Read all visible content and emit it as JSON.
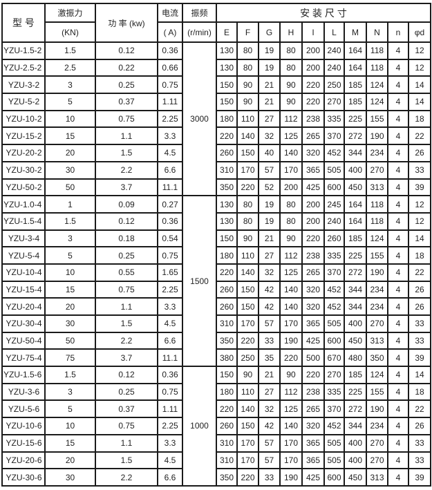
{
  "header": {
    "model": "型 号",
    "force": "激振力",
    "force_unit": "(KN)",
    "power": "功 率 (kw)",
    "current": "电流",
    "current_unit": "( A)",
    "freq": "振频",
    "freq_unit": "(r/min)",
    "install": "安  装  尺  寸",
    "dims": [
      "E",
      "F",
      "G",
      "H",
      "I",
      "L",
      "M",
      "N",
      "n",
      "φd"
    ]
  },
  "groups": [
    {
      "freq": "3000",
      "rows": [
        [
          "YZU-1.5-2",
          "1.5",
          "0.12",
          "0.36",
          [
            "130",
            "80",
            "19",
            "80",
            "200",
            "240",
            "164",
            "118",
            "4",
            "12"
          ]
        ],
        [
          "YZU-2.5-2",
          "2.5",
          "0.22",
          "0.66",
          [
            "130",
            "80",
            "19",
            "80",
            "200",
            "240",
            "164",
            "118",
            "4",
            "12"
          ]
        ],
        [
          "YZU-3-2",
          "3",
          "0.25",
          "0.75",
          [
            "150",
            "90",
            "21",
            "90",
            "220",
            "250",
            "185",
            "124",
            "4",
            "14"
          ]
        ],
        [
          "YZU-5-2",
          "5",
          "0.37",
          "1.11",
          [
            "150",
            "90",
            "21",
            "90",
            "220",
            "270",
            "185",
            "124",
            "4",
            "14"
          ]
        ],
        [
          "YZU-10-2",
          "10",
          "0.75",
          "2.25",
          [
            "180",
            "110",
            "27",
            "112",
            "238",
            "335",
            "225",
            "155",
            "4",
            "18"
          ]
        ],
        [
          "YZU-15-2",
          "15",
          "1.1",
          "3.3",
          [
            "220",
            "140",
            "32",
            "125",
            "265",
            "370",
            "272",
            "190",
            "4",
            "22"
          ]
        ],
        [
          "YZU-20-2",
          "20",
          "1.5",
          "4.5",
          [
            "260",
            "150",
            "40",
            "140",
            "320",
            "452",
            "344",
            "234",
            "4",
            "26"
          ]
        ],
        [
          "YZU-30-2",
          "30",
          "2.2",
          "6.6",
          [
            "310",
            "170",
            "57",
            "170",
            "365",
            "505",
            "400",
            "270",
            "4",
            "33"
          ]
        ],
        [
          "YZU-50-2",
          "50",
          "3.7",
          "11.1",
          [
            "350",
            "220",
            "52",
            "200",
            "425",
            "600",
            "450",
            "313",
            "4",
            "39"
          ]
        ]
      ]
    },
    {
      "freq": "1500",
      "rows": [
        [
          "YZU-1.0-4",
          "1",
          "0.09",
          "0.27",
          [
            "130",
            "80",
            "19",
            "80",
            "200",
            "245",
            "164",
            "118",
            "4",
            "12"
          ]
        ],
        [
          "YZU-1.5-4",
          "1.5",
          "0.12",
          "0.36",
          [
            "130",
            "80",
            "19",
            "80",
            "200",
            "240",
            "164",
            "118",
            "4",
            "12"
          ]
        ],
        [
          "YZU-3-4",
          "3",
          "0.18",
          "0.54",
          [
            "150",
            "90",
            "21",
            "90",
            "220",
            "260",
            "185",
            "124",
            "4",
            "14"
          ]
        ],
        [
          "YZU-5-4",
          "5",
          "0.25",
          "0.75",
          [
            "180",
            "110",
            "27",
            "112",
            "238",
            "335",
            "225",
            "155",
            "4",
            "18"
          ]
        ],
        [
          "YZU-10-4",
          "10",
          "0.55",
          "1.65",
          [
            "220",
            "140",
            "32",
            "125",
            "265",
            "370",
            "272",
            "190",
            "4",
            "22"
          ]
        ],
        [
          "YZU-15-4",
          "15",
          "0.75",
          "2.25",
          [
            "260",
            "150",
            "42",
            "140",
            "320",
            "452",
            "344",
            "234",
            "4",
            "26"
          ]
        ],
        [
          "YZU-20-4",
          "20",
          "1.1",
          "3.3",
          [
            "260",
            "150",
            "42",
            "140",
            "320",
            "452",
            "344",
            "234",
            "4",
            "26"
          ]
        ],
        [
          "YZU-30-4",
          "30",
          "1.5",
          "4.5",
          [
            "310",
            "170",
            "57",
            "170",
            "365",
            "505",
            "400",
            "270",
            "4",
            "33"
          ]
        ],
        [
          "YZU-50-4",
          "50",
          "2.2",
          "6.6",
          [
            "350",
            "220",
            "33",
            "190",
            "425",
            "600",
            "450",
            "313",
            "4",
            "33"
          ]
        ],
        [
          "YZU-75-4",
          "75",
          "3.7",
          "11.1",
          [
            "380",
            "250",
            "35",
            "220",
            "500",
            "670",
            "480",
            "350",
            "4",
            "39"
          ]
        ]
      ]
    },
    {
      "freq": "1000",
      "rows": [
        [
          "YZU-1.5-6",
          "1.5",
          "0.12",
          "0.36",
          [
            "150",
            "90",
            "21",
            "90",
            "220",
            "270",
            "185",
            "124",
            "4",
            "14"
          ]
        ],
        [
          "YZU-3-6",
          "3",
          "0.25",
          "0.75",
          [
            "180",
            "110",
            "27",
            "112",
            "238",
            "335",
            "225",
            "155",
            "4",
            "18"
          ]
        ],
        [
          "YZU-5-6",
          "5",
          "0.37",
          "1.11",
          [
            "220",
            "140",
            "32",
            "125",
            "265",
            "370",
            "272",
            "190",
            "4",
            "22"
          ]
        ],
        [
          "YZU-10-6",
          "10",
          "0.75",
          "2.25",
          [
            "260",
            "150",
            "42",
            "140",
            "320",
            "452",
            "344",
            "234",
            "4",
            "26"
          ]
        ],
        [
          "YZU-15-6",
          "15",
          "1.1",
          "3.3",
          [
            "310",
            "170",
            "57",
            "170",
            "365",
            "505",
            "400",
            "270",
            "4",
            "33"
          ]
        ],
        [
          "YZU-20-6",
          "20",
          "1.5",
          "4.5",
          [
            "310",
            "170",
            "57",
            "170",
            "365",
            "505",
            "400",
            "270",
            "4",
            "33"
          ]
        ],
        [
          "YZU-30-6",
          "30",
          "2.2",
          "6.6",
          [
            "350",
            "220",
            "33",
            "190",
            "425",
            "600",
            "450",
            "313",
            "4",
            "39"
          ]
        ]
      ]
    }
  ]
}
